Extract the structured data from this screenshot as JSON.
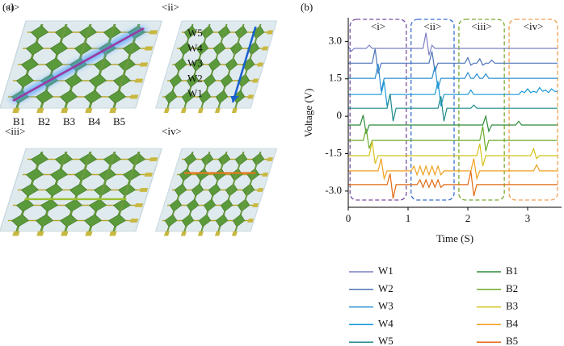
{
  "panel_a": {
    "label": "(a)",
    "sub_labels": [
      "<i>",
      "<ii>",
      "<iii>",
      "<iv>"
    ],
    "w_labels": [
      "W5",
      "W4",
      "W3",
      "W2",
      "W1"
    ],
    "b_labels": [
      "B1",
      "B2",
      "B3",
      "B4",
      "B5"
    ]
  },
  "chart_data": {
    "type": "line",
    "panel_label": "(b)",
    "xlabel": "Time (S)",
    "ylabel": "Voltage (V)",
    "xlim": [
      0,
      3.5
    ],
    "ylim": [
      -3.65,
      3.95
    ],
    "xticks": [
      0,
      1,
      2,
      3
    ],
    "yticks": [
      {
        "value": -3,
        "label": "-3.0"
      },
      {
        "value": -1.5,
        "label": "-1.5"
      },
      0,
      {
        "value": 1.5,
        "label": "1.5"
      },
      {
        "value": 3,
        "label": "3.0"
      }
    ],
    "regions": [
      {
        "label": "<i>",
        "x": [
          0.03,
          0.97
        ],
        "color": "#7b4fa0"
      },
      {
        "label": "<ii>",
        "x": [
          1.05,
          1.77
        ],
        "color": "#3a6fd0"
      },
      {
        "label": "<iii>",
        "x": [
          1.85,
          2.61
        ],
        "color": "#7aaa30"
      },
      {
        "label": "<iv>",
        "x": [
          2.69,
          3.5
        ],
        "color": "#f0a050"
      }
    ],
    "x": [
      0,
      0.05,
      0.1,
      0.15,
      0.2,
      0.25,
      0.3,
      0.35,
      0.4,
      0.45,
      0.5,
      0.55,
      0.6,
      0.65,
      0.7,
      0.75,
      0.8,
      0.85,
      0.9,
      0.95,
      1,
      1.05,
      1.1,
      1.15,
      1.2,
      1.25,
      1.3,
      1.35,
      1.4,
      1.45,
      1.5,
      1.55,
      1.6,
      1.65,
      1.7,
      1.75,
      1.8,
      1.85,
      1.9,
      1.95,
      2,
      2.05,
      2.1,
      2.15,
      2.2,
      2.25,
      2.3,
      2.35,
      2.4,
      2.45,
      2.5,
      2.55,
      2.6,
      2.65,
      2.7,
      2.75,
      2.8,
      2.85,
      2.9,
      2.95,
      3,
      3.05,
      3.1,
      3.15,
      3.2,
      3.25,
      3.3,
      3.35,
      3.4,
      3.45,
      3.5
    ],
    "series": [
      {
        "name": "W1",
        "color": "#7b7fc4",
        "values": [
          2.8,
          2.6,
          2.72,
          2.72,
          2.72,
          2.72,
          2.72,
          2.85,
          2.72,
          2.72,
          2.72,
          2.72,
          2.72,
          2.72,
          2.72,
          2.72,
          2.72,
          2.72,
          2.72,
          2.72,
          2.72,
          2.72,
          2.72,
          2.72,
          2.72,
          2.72,
          3.35,
          2.45,
          2.85,
          2.72,
          2.72,
          2.72,
          2.72,
          2.72,
          2.72,
          2.72,
          2.72,
          2.72,
          2.72,
          2.72,
          2.72,
          2.72,
          2.72,
          2.72,
          2.72,
          2.72,
          2.72,
          2.72,
          2.72,
          2.72,
          2.72,
          2.72,
          2.72,
          2.72,
          2.72,
          2.72,
          2.72,
          2.72,
          2.72,
          2.72,
          2.72,
          2.72,
          2.72,
          2.72,
          2.72,
          2.72,
          2.72,
          2.72,
          2.72,
          2.72,
          2.72
        ]
      },
      {
        "name": "W2",
        "color": "#4a73b8",
        "values": [
          2.13,
          2.13,
          2.13,
          2.13,
          2.13,
          2.13,
          2.13,
          2.13,
          2.13,
          2.7,
          1.7,
          2.13,
          2.13,
          2.13,
          2.13,
          2.13,
          2.13,
          2.13,
          2.13,
          2.13,
          2.13,
          2.13,
          2.13,
          2.13,
          2.13,
          2.13,
          2.13,
          2.13,
          2.6,
          1.8,
          2.13,
          2.13,
          2.13,
          2.13,
          2.13,
          2.13,
          2.13,
          2.13,
          2.13,
          2.13,
          2.35,
          2.05,
          2.13,
          2.13,
          2.3,
          2.05,
          2.13,
          2.13,
          2.25,
          2.13,
          2.13,
          2.13,
          2.13,
          2.13,
          2.13,
          2.13,
          2.13,
          2.13,
          2.13,
          2.13,
          2.13,
          2.13,
          2.13,
          2.13,
          2.13,
          2.13,
          2.13,
          2.13,
          2.13,
          2.13,
          2.13
        ]
      },
      {
        "name": "W3",
        "color": "#2f8fd0",
        "values": [
          1.52,
          1.52,
          1.52,
          1.52,
          1.52,
          1.52,
          1.52,
          1.52,
          1.52,
          1.52,
          2.1,
          1.0,
          1.52,
          1.52,
          1.52,
          1.52,
          1.52,
          1.52,
          1.52,
          1.52,
          1.52,
          1.52,
          1.52,
          1.52,
          1.52,
          1.52,
          1.52,
          1.52,
          1.52,
          2.0,
          1.1,
          1.52,
          1.52,
          1.52,
          1.52,
          1.52,
          1.52,
          1.52,
          1.52,
          1.52,
          1.75,
          1.52,
          1.52,
          1.7,
          1.52,
          1.52,
          1.7,
          1.52,
          1.52,
          1.52,
          1.52,
          1.52,
          1.52,
          1.52,
          1.52,
          1.52,
          1.52,
          1.52,
          1.52,
          1.52,
          1.52,
          1.52,
          1.52,
          1.52,
          1.52,
          1.52,
          1.52,
          1.52,
          1.52,
          1.52,
          1.52
        ]
      },
      {
        "name": "W4",
        "color": "#1a9ad6",
        "values": [
          0.87,
          0.87,
          0.87,
          0.87,
          0.87,
          0.87,
          0.87,
          0.87,
          0.87,
          0.87,
          0.87,
          0.87,
          1.4,
          0.4,
          0.87,
          0.87,
          0.87,
          0.87,
          0.87,
          0.87,
          0.87,
          0.87,
          0.87,
          0.87,
          0.87,
          0.87,
          0.87,
          0.87,
          0.87,
          0.87,
          1.4,
          0.4,
          0.87,
          0.87,
          0.87,
          0.87,
          0.87,
          0.87,
          0.87,
          0.87,
          0.87,
          1.05,
          0.87,
          0.87,
          0.87,
          0.87,
          0.87,
          0.87,
          0.87,
          0.87,
          0.87,
          0.87,
          0.87,
          0.87,
          0.87,
          0.87,
          0.87,
          0.87,
          1.0,
          0.95,
          1.1,
          0.95,
          1.0,
          0.95,
          1.15,
          1.0,
          1.05,
          0.95,
          1.1,
          1.0,
          1.0
        ]
      },
      {
        "name": "W5",
        "color": "#1f8a8a",
        "values": [
          0.32,
          0.32,
          0.32,
          0.32,
          0.32,
          0.32,
          0.32,
          0.32,
          0.32,
          0.32,
          0.32,
          0.32,
          0.32,
          0.32,
          0.9,
          -0.2,
          0.32,
          0.32,
          0.32,
          0.32,
          0.32,
          0.32,
          0.32,
          0.32,
          0.32,
          0.32,
          0.32,
          0.32,
          0.32,
          0.32,
          0.32,
          0.8,
          -0.2,
          0.32,
          0.32,
          0.32,
          0.32,
          0.32,
          0.32,
          0.32,
          0.32,
          0.32,
          0.45,
          0.32,
          0.32,
          0.32,
          0.32,
          0.32,
          0.32,
          0.32,
          0.32,
          0.32,
          0.32,
          0.32,
          0.32,
          0.32,
          0.32,
          0.32,
          0.32,
          0.32,
          0.32,
          0.32,
          0.32,
          0.32,
          0.32,
          0.32,
          0.32,
          0.32,
          0.32,
          0.32,
          0.32
        ]
      },
      {
        "name": "B1",
        "color": "#2e8b3a",
        "values": [
          -0.35,
          -0.35,
          -0.35,
          -0.35,
          -0.35,
          0.05,
          -0.7,
          -0.35,
          -0.35,
          -0.35,
          -0.35,
          -0.35,
          -0.35,
          -0.35,
          -0.35,
          -0.35,
          -0.35,
          -0.35,
          -0.35,
          -0.35,
          -0.35,
          -0.35,
          -0.35,
          -0.35,
          -0.35,
          -0.35,
          -0.35,
          -0.35,
          -0.35,
          -0.35,
          -0.35,
          -0.35,
          -0.35,
          -0.35,
          -0.35,
          -0.35,
          -0.35,
          -0.35,
          -0.35,
          -0.35,
          -0.35,
          -0.35,
          -0.35,
          -0.35,
          -0.35,
          -0.35,
          0.0,
          -0.6,
          -0.35,
          -0.35,
          -0.35,
          -0.35,
          -0.35,
          -0.35,
          -0.35,
          -0.35,
          -0.35,
          -0.2,
          -0.35,
          -0.35,
          -0.35,
          -0.35,
          -0.35,
          -0.35,
          -0.35,
          -0.35,
          -0.35,
          -0.35,
          -0.35,
          -0.35,
          -0.35
        ]
      },
      {
        "name": "B2",
        "color": "#6aaa2a",
        "values": [
          -0.97,
          -0.97,
          -0.97,
          -0.97,
          -0.97,
          -0.97,
          -0.5,
          -1.3,
          -0.97,
          -0.97,
          -0.97,
          -0.97,
          -0.97,
          -0.97,
          -0.97,
          -0.97,
          -0.97,
          -0.97,
          -0.97,
          -0.97,
          -0.97,
          -0.97,
          -0.97,
          -0.97,
          -0.97,
          -0.97,
          -0.97,
          -0.97,
          -0.97,
          -0.97,
          -0.97,
          -0.97,
          -0.97,
          -0.97,
          -0.97,
          -0.97,
          -0.97,
          -0.97,
          -0.97,
          -0.97,
          -0.97,
          -0.97,
          -0.97,
          -0.97,
          -0.97,
          -0.4,
          -1.4,
          -0.97,
          -0.97,
          -0.97,
          -0.97,
          -0.97,
          -0.97,
          -0.97,
          -0.97,
          -0.97,
          -0.97,
          -0.97,
          -0.97,
          -0.97,
          -0.97,
          -0.97,
          -0.97,
          -0.97,
          -0.97,
          -0.97,
          -0.97,
          -0.97,
          -0.97,
          -0.97,
          -0.97
        ]
      },
      {
        "name": "B3",
        "color": "#d4c21a",
        "values": [
          -1.58,
          -1.58,
          -1.58,
          -1.58,
          -1.58,
          -1.58,
          -1.58,
          -1.58,
          -1.0,
          -1.9,
          -1.58,
          -1.58,
          -1.58,
          -1.58,
          -1.58,
          -1.58,
          -1.58,
          -1.58,
          -1.58,
          -1.58,
          -1.58,
          -1.58,
          -1.58,
          -1.58,
          -1.58,
          -1.58,
          -1.58,
          -1.58,
          -1.58,
          -1.58,
          -1.58,
          -1.58,
          -1.58,
          -1.58,
          -1.58,
          -1.58,
          -1.58,
          -1.58,
          -1.58,
          -1.58,
          -1.58,
          -1.58,
          -1.58,
          -1.58,
          -1.1,
          -2.0,
          -1.58,
          -1.58,
          -1.58,
          -1.58,
          -1.58,
          -1.58,
          -1.58,
          -1.58,
          -1.58,
          -1.58,
          -1.58,
          -1.58,
          -1.58,
          -1.58,
          -1.58,
          -1.58,
          -1.3,
          -1.7,
          -1.58,
          -1.58,
          -1.58,
          -1.58,
          -1.58,
          -1.58,
          -1.58
        ]
      },
      {
        "name": "B4",
        "color": "#f0a020",
        "values": [
          -2.19,
          -2.19,
          -2.19,
          -2.19,
          -2.19,
          -2.19,
          -2.19,
          -2.19,
          -2.19,
          -2.19,
          -2.19,
          -1.7,
          -2.5,
          -2.19,
          -2.19,
          -2.19,
          -2.19,
          -2.19,
          -2.19,
          -2.19,
          -2.19,
          -2.19,
          -2.0,
          -2.35,
          -2.0,
          -2.35,
          -2.0,
          -2.35,
          -2.0,
          -2.35,
          -2.0,
          -2.35,
          -2.19,
          -2.19,
          -2.19,
          -2.19,
          -2.19,
          -2.19,
          -2.19,
          -2.19,
          -2.19,
          -2.19,
          -1.7,
          -2.5,
          -2.19,
          -2.19,
          -2.19,
          -2.19,
          -2.19,
          -2.19,
          -2.19,
          -2.19,
          -2.19,
          -2.19,
          -2.19,
          -2.19,
          -2.19,
          -2.19,
          -2.19,
          -2.19,
          -2.19,
          -2.19,
          -2.19,
          -1.95,
          -2.19,
          -2.19,
          -2.19,
          -2.19,
          -2.19,
          -2.19,
          -2.19
        ]
      },
      {
        "name": "B5",
        "color": "#e06a10",
        "values": [
          -2.74,
          -2.74,
          -2.74,
          -2.74,
          -2.74,
          -2.74,
          -2.74,
          -2.74,
          -2.74,
          -2.74,
          -2.74,
          -2.74,
          -2.74,
          -2.74,
          -2.3,
          -3.3,
          -2.74,
          -2.74,
          -2.74,
          -2.74,
          -2.74,
          -2.74,
          -2.74,
          -2.74,
          -2.55,
          -2.85,
          -2.55,
          -2.85,
          -2.55,
          -2.85,
          -2.55,
          -2.85,
          -2.74,
          -2.74,
          -2.74,
          -2.74,
          -2.74,
          -2.74,
          -2.74,
          -2.74,
          -2.74,
          -2.2,
          -3.2,
          -2.74,
          -2.74,
          -2.74,
          -2.74,
          -2.74,
          -2.74,
          -2.74,
          -2.74,
          -2.74,
          -2.74,
          -2.74,
          -2.74,
          -2.74,
          -2.74,
          -2.74,
          -2.74,
          -2.74,
          -2.74,
          -2.74,
          -2.74,
          -2.74,
          -2.74,
          -2.74,
          -2.74,
          -2.74,
          -2.74,
          -2.74,
          -2.74
        ]
      }
    ]
  }
}
